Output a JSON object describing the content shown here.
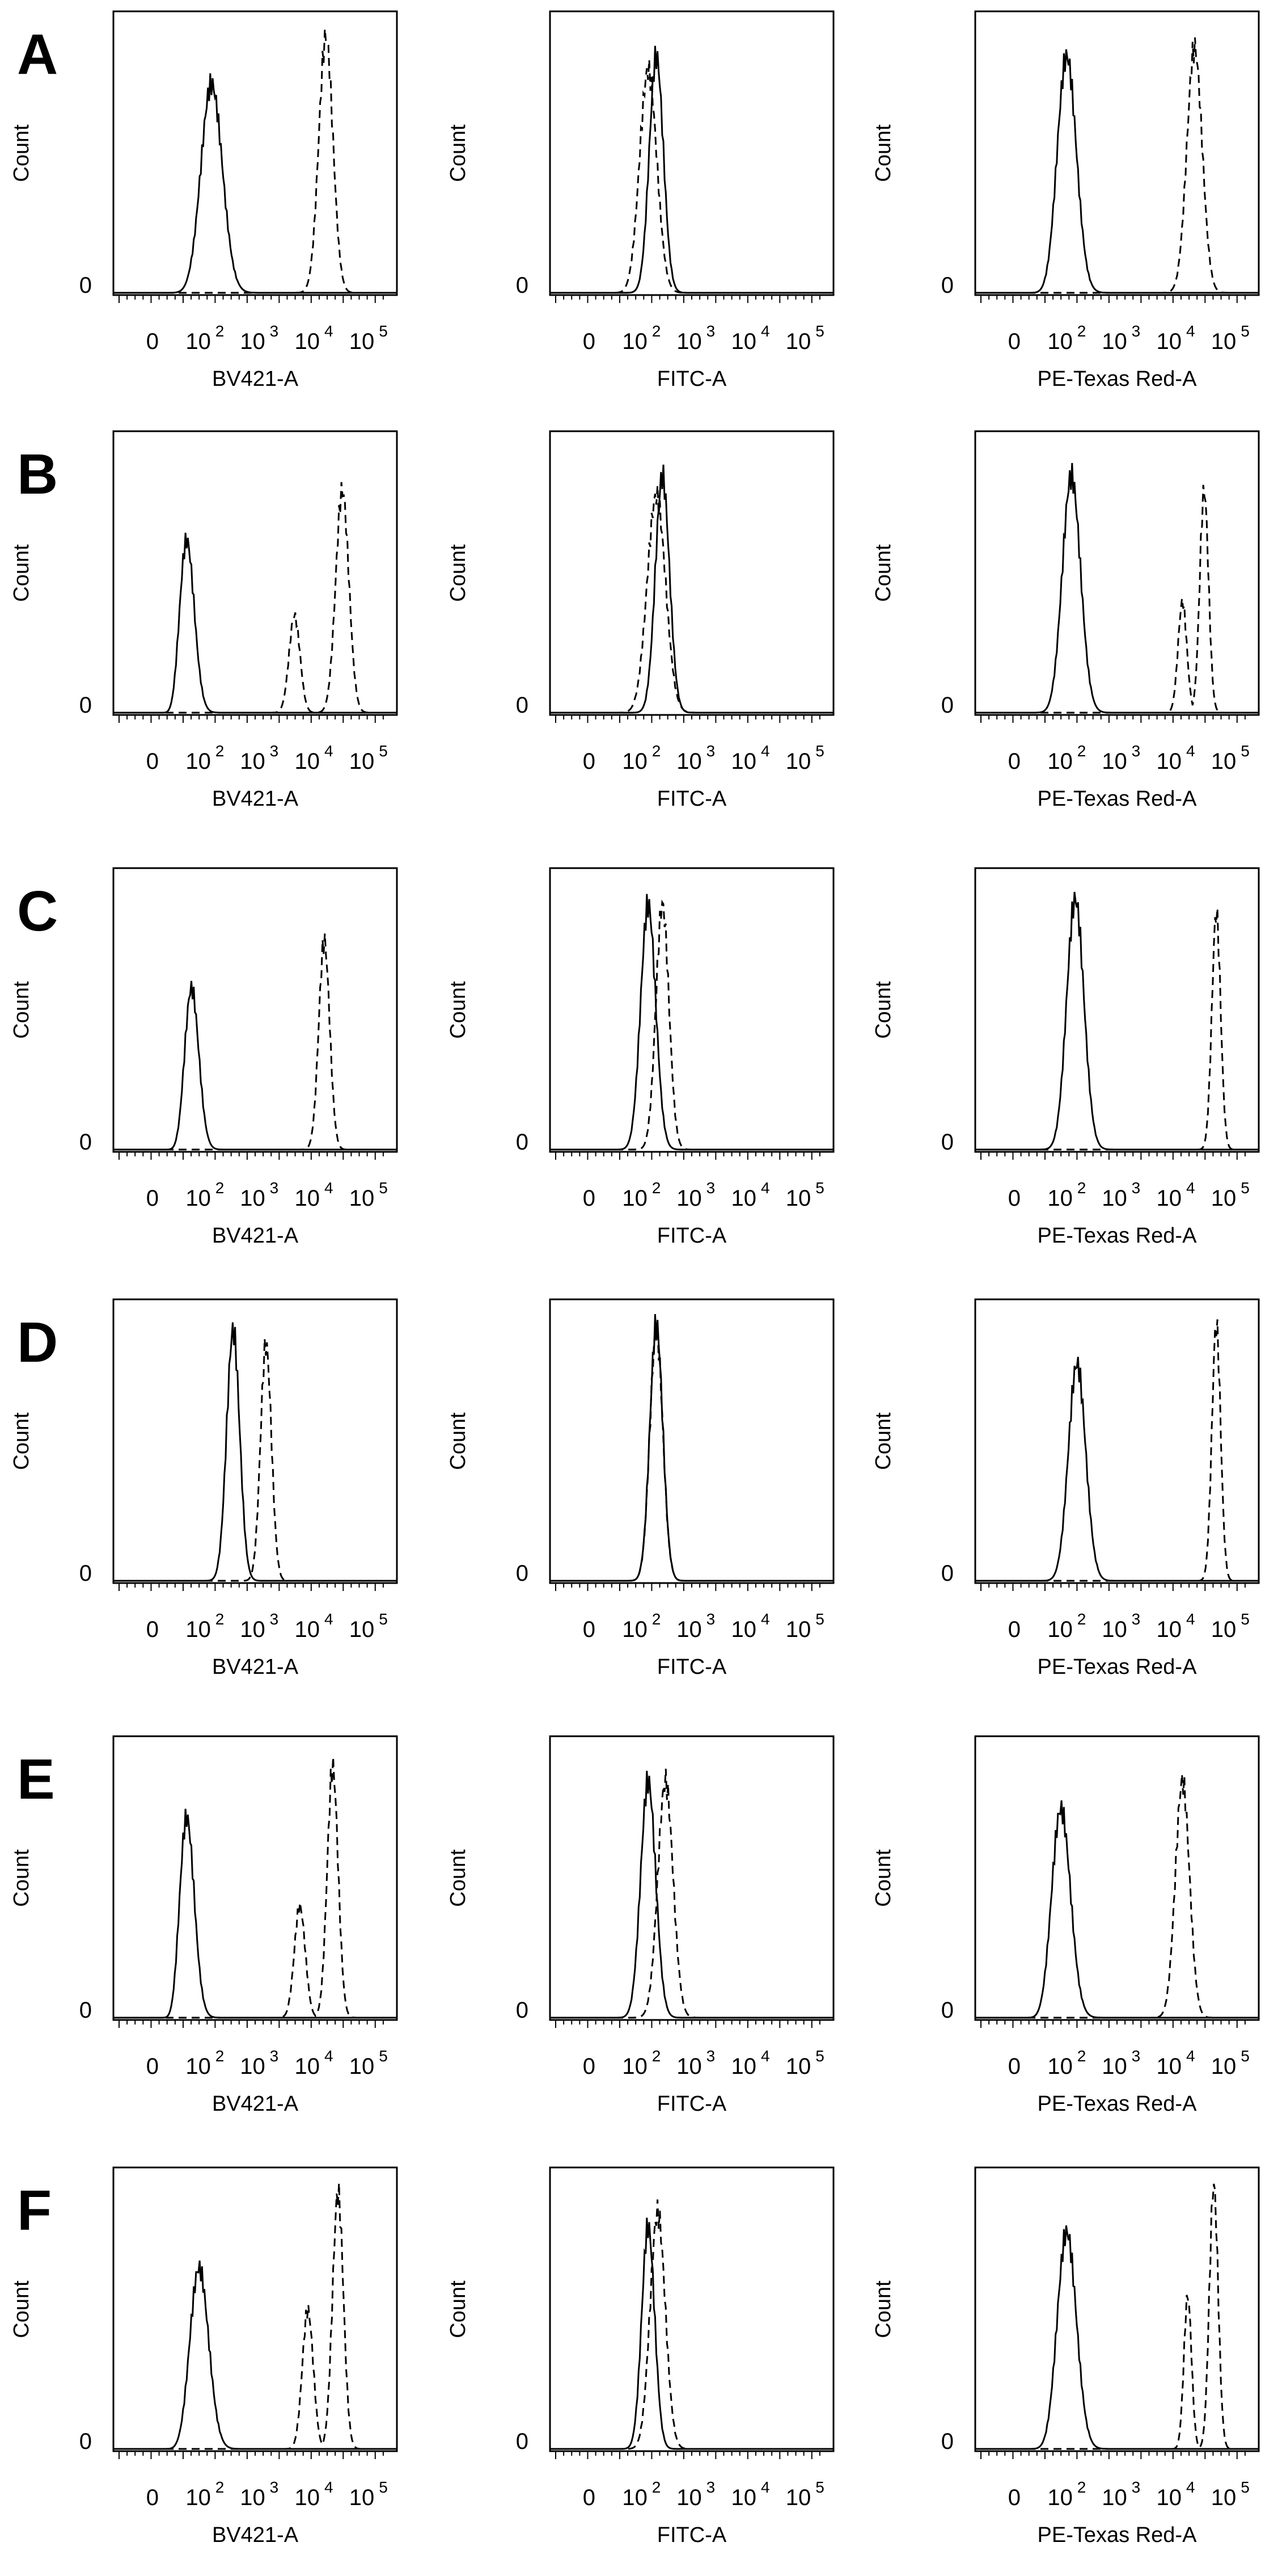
{
  "figure": {
    "x_scale": "logicle",
    "x_tick_labels": [
      "0",
      "10",
      "2",
      "10",
      "3",
      "10",
      "4",
      "10",
      "5"
    ],
    "y_tick_label": "0",
    "line_styles": {
      "solid": "solid",
      "dashed": "dashed"
    },
    "colors": {
      "lines": "#000000",
      "frame": "#000000",
      "background": "#ffffff"
    }
  },
  "chart_data": [
    {
      "type": "area",
      "panel_letter": "A",
      "xlabel": "BV421-A",
      "ylabel": "Count",
      "xlim": [
        -50,
        300000
      ],
      "series": [
        {
          "style": "solid",
          "peaks": [
            {
              "center": 120,
              "height": 0.75,
              "width": 0.2
            }
          ]
        },
        {
          "style": "dashed",
          "peaks": [
            {
              "center": 15000,
              "height": 0.92,
              "width": 0.13
            }
          ]
        }
      ]
    },
    {
      "type": "area",
      "panel_letter": "",
      "xlabel": "FITC-A",
      "ylabel": "Count",
      "xlim": [
        -50,
        300000
      ],
      "series": [
        {
          "style": "solid",
          "peaks": [
            {
              "center": 170,
              "height": 0.85,
              "width": 0.13
            }
          ]
        },
        {
          "style": "dashed",
          "peaks": [
            {
              "center": 120,
              "height": 0.8,
              "width": 0.16
            }
          ]
        }
      ]
    },
    {
      "type": "area",
      "panel_letter": "",
      "xlabel": "PE-Texas Red-A",
      "ylabel": "Count",
      "xlim": [
        -50,
        300000
      ],
      "series": [
        {
          "style": "solid",
          "peaks": [
            {
              "center": 90,
              "height": 0.85,
              "width": 0.18
            }
          ]
        },
        {
          "style": "dashed",
          "peaks": [
            {
              "center": 20000,
              "height": 0.88,
              "width": 0.14
            }
          ]
        }
      ]
    },
    {
      "type": "area",
      "panel_letter": "B",
      "xlabel": "BV421-A",
      "ylabel": "Count",
      "xlim": [
        -50,
        300000
      ],
      "series": [
        {
          "style": "solid",
          "peaks": [
            {
              "center": 40,
              "height": 0.62,
              "width": 0.15
            }
          ]
        },
        {
          "style": "dashed",
          "peaks": [
            {
              "center": 4000,
              "height": 0.35,
              "width": 0.1
            },
            {
              "center": 30000,
              "height": 0.8,
              "width": 0.12
            }
          ]
        }
      ]
    },
    {
      "type": "area",
      "panel_letter": "",
      "xlabel": "FITC-A",
      "ylabel": "Count",
      "xlim": [
        -50,
        300000
      ],
      "series": [
        {
          "style": "solid",
          "peaks": [
            {
              "center": 220,
              "height": 0.85,
              "width": 0.13
            }
          ]
        },
        {
          "style": "dashed",
          "peaks": [
            {
              "center": 170,
              "height": 0.78,
              "width": 0.17
            }
          ]
        }
      ]
    },
    {
      "type": "area",
      "panel_letter": "",
      "xlabel": "PE-Texas Red-A",
      "ylabel": "Count",
      "xlim": [
        -50,
        300000
      ],
      "series": [
        {
          "style": "solid",
          "peaks": [
            {
              "center": 110,
              "height": 0.85,
              "width": 0.17
            }
          ]
        },
        {
          "style": "dashed",
          "peaks": [
            {
              "center": 12000,
              "height": 0.4,
              "width": 0.08
            },
            {
              "center": 30000,
              "height": 0.8,
              "width": 0.08
            }
          ]
        }
      ]
    },
    {
      "type": "area",
      "panel_letter": "C",
      "xlabel": "BV421-A",
      "ylabel": "Count",
      "xlim": [
        -50,
        300000
      ],
      "series": [
        {
          "style": "solid",
          "peaks": [
            {
              "center": 50,
              "height": 0.58,
              "width": 0.14
            }
          ]
        },
        {
          "style": "dashed",
          "peaks": [
            {
              "center": 14000,
              "height": 0.75,
              "width": 0.1
            }
          ]
        }
      ]
    },
    {
      "type": "area",
      "panel_letter": "",
      "xlabel": "FITC-A",
      "ylabel": "Count",
      "xlim": [
        -50,
        300000
      ],
      "series": [
        {
          "style": "solid",
          "peaks": [
            {
              "center": 120,
              "height": 0.88,
              "width": 0.14
            }
          ]
        },
        {
          "style": "dashed",
          "peaks": [
            {
              "center": 220,
              "height": 0.88,
              "width": 0.12
            }
          ]
        }
      ]
    },
    {
      "type": "area",
      "panel_letter": "",
      "xlabel": "PE-Texas Red-A",
      "ylabel": "Count",
      "xlim": [
        -50,
        300000
      ],
      "series": [
        {
          "style": "solid",
          "peaks": [
            {
              "center": 130,
              "height": 0.9,
              "width": 0.16
            }
          ]
        },
        {
          "style": "dashed",
          "peaks": [
            {
              "center": 50000,
              "height": 0.85,
              "width": 0.08
            }
          ]
        }
      ]
    },
    {
      "type": "area",
      "panel_letter": "D",
      "xlabel": "BV421-A",
      "ylabel": "Count",
      "xlim": [
        -50,
        300000
      ],
      "series": [
        {
          "style": "solid",
          "peaks": [
            {
              "center": 300,
              "height": 0.9,
              "width": 0.12
            }
          ]
        },
        {
          "style": "dashed",
          "peaks": [
            {
              "center": 1200,
              "height": 0.85,
              "width": 0.1
            }
          ]
        }
      ]
    },
    {
      "type": "area",
      "panel_letter": "",
      "xlabel": "FITC-A",
      "ylabel": "Count",
      "xlim": [
        -50,
        300000
      ],
      "series": [
        {
          "style": "solid",
          "peaks": [
            {
              "center": 170,
              "height": 0.92,
              "width": 0.12
            }
          ]
        },
        {
          "style": "dashed",
          "peaks": [
            {
              "center": 170,
              "height": 0.9,
              "width": 0.12
            }
          ]
        }
      ]
    },
    {
      "type": "area",
      "panel_letter": "",
      "xlabel": "PE-Texas Red-A",
      "ylabel": "Count",
      "xlim": [
        -50,
        300000
      ],
      "series": [
        {
          "style": "solid",
          "peaks": [
            {
              "center": 140,
              "height": 0.78,
              "width": 0.16
            }
          ]
        },
        {
          "style": "dashed",
          "peaks": [
            {
              "center": 50000,
              "height": 0.92,
              "width": 0.08
            }
          ]
        }
      ]
    },
    {
      "type": "area",
      "panel_letter": "E",
      "xlabel": "BV421-A",
      "ylabel": "Count",
      "xlim": [
        -50,
        300000
      ],
      "series": [
        {
          "style": "solid",
          "peaks": [
            {
              "center": 40,
              "height": 0.72,
              "width": 0.15
            }
          ]
        },
        {
          "style": "dashed",
          "peaks": [
            {
              "center": 5000,
              "height": 0.4,
              "width": 0.1
            },
            {
              "center": 20000,
              "height": 0.9,
              "width": 0.1
            }
          ]
        }
      ]
    },
    {
      "type": "area",
      "panel_letter": "",
      "xlabel": "FITC-A",
      "ylabel": "Count",
      "xlim": [
        -50,
        300000
      ],
      "series": [
        {
          "style": "solid",
          "peaks": [
            {
              "center": 120,
              "height": 0.85,
              "width": 0.14
            }
          ]
        },
        {
          "style": "dashed",
          "peaks": [
            {
              "center": 250,
              "height": 0.85,
              "width": 0.14
            }
          ]
        }
      ]
    },
    {
      "type": "area",
      "panel_letter": "",
      "xlabel": "PE-Texas Red-A",
      "ylabel": "Count",
      "xlim": [
        -50,
        300000
      ],
      "series": [
        {
          "style": "solid",
          "peaks": [
            {
              "center": 70,
              "height": 0.75,
              "width": 0.18
            }
          ]
        },
        {
          "style": "dashed",
          "peaks": [
            {
              "center": 12000,
              "height": 0.85,
              "width": 0.13
            }
          ]
        }
      ]
    },
    {
      "type": "area",
      "panel_letter": "F",
      "xlabel": "BV421-A",
      "ylabel": "Count",
      "xlim": [
        -50,
        300000
      ],
      "series": [
        {
          "style": "solid",
          "peaks": [
            {
              "center": 70,
              "height": 0.65,
              "width": 0.18
            }
          ]
        },
        {
          "style": "dashed",
          "peaks": [
            {
              "center": 7000,
              "height": 0.5,
              "width": 0.1
            },
            {
              "center": 25000,
              "height": 0.92,
              "width": 0.1
            }
          ]
        }
      ]
    },
    {
      "type": "area",
      "panel_letter": "",
      "xlabel": "FITC-A",
      "ylabel": "Count",
      "xlim": [
        -50,
        300000
      ],
      "series": [
        {
          "style": "solid",
          "peaks": [
            {
              "center": 120,
              "height": 0.8,
              "width": 0.12
            }
          ]
        },
        {
          "style": "dashed",
          "peaks": [
            {
              "center": 180,
              "height": 0.85,
              "width": 0.14
            }
          ]
        }
      ]
    },
    {
      "type": "area",
      "panel_letter": "",
      "xlabel": "PE-Texas Red-A",
      "ylabel": "Count",
      "xlim": [
        -50,
        300000
      ],
      "series": [
        {
          "style": "solid",
          "peaks": [
            {
              "center": 90,
              "height": 0.78,
              "width": 0.18
            }
          ]
        },
        {
          "style": "dashed",
          "peaks": [
            {
              "center": 15000,
              "height": 0.55,
              "width": 0.07
            },
            {
              "center": 45000,
              "height": 0.95,
              "width": 0.08
            }
          ]
        }
      ]
    }
  ]
}
